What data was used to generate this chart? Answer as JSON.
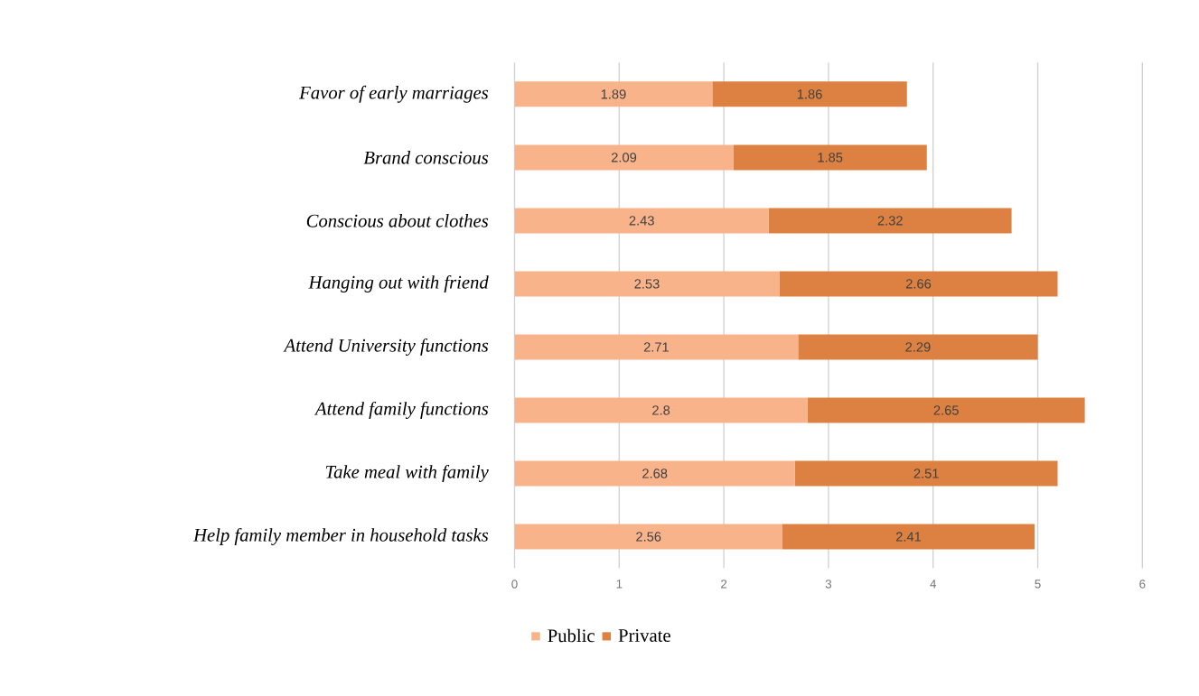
{
  "chart_data": {
    "type": "bar",
    "orientation": "horizontal",
    "stacked": true,
    "categories": [
      "Favor of early marriages",
      "Brand conscious",
      "Conscious about clothes",
      "Hanging out with friend",
      "Attend University functions",
      "Attend family functions",
      "Take meal with family",
      "Help family member in household tasks"
    ],
    "series": [
      {
        "name": "Public",
        "color": "#f8b38b",
        "values": [
          1.89,
          2.09,
          2.43,
          2.53,
          2.71,
          2.8,
          2.68,
          2.56
        ]
      },
      {
        "name": "Private",
        "color": "#dc8141",
        "values": [
          1.86,
          1.85,
          2.32,
          2.66,
          2.29,
          2.65,
          2.51,
          2.41
        ]
      }
    ],
    "xlim": [
      0,
      6
    ],
    "xticks": [
      0,
      1,
      2,
      3,
      4,
      5,
      6
    ],
    "grid": "x",
    "legend": "bottom",
    "data_labels": true
  }
}
